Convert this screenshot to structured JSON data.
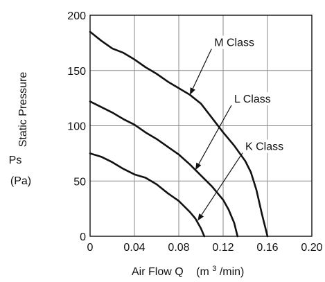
{
  "chart_data": {
    "type": "line",
    "x_ticks": [
      "0",
      "0.04",
      "0.08",
      "0.12",
      "0.16",
      "0.20"
    ],
    "y_ticks": [
      "0",
      "50",
      "100",
      "150",
      "200"
    ],
    "xlim": [
      0,
      0.2
    ],
    "ylim": [
      0,
      200
    ],
    "grid": true,
    "xlabel": "Air Flow Q",
    "xunit_prefix": "(m",
    "xunit_sup": "3",
    "xunit_suffix": "/min)",
    "ylabel": "Static Pressure",
    "ylabel2": "Ps",
    "ylabel3": "(Pa)",
    "series": [
      {
        "name": "M Class",
        "x": [
          0,
          0.01,
          0.02,
          0.03,
          0.04,
          0.05,
          0.06,
          0.07,
          0.08,
          0.09,
          0.1,
          0.11,
          0.12,
          0.13,
          0.14,
          0.145,
          0.15,
          0.155,
          0.16
        ],
        "y": [
          185,
          177,
          170,
          166,
          160,
          153,
          147,
          140,
          134,
          128,
          120,
          107,
          94,
          82,
          68,
          58,
          42,
          20,
          0
        ]
      },
      {
        "name": "L Class",
        "x": [
          0,
          0.01,
          0.02,
          0.03,
          0.04,
          0.05,
          0.06,
          0.07,
          0.08,
          0.09,
          0.1,
          0.11,
          0.12,
          0.125,
          0.13,
          0.133
        ],
        "y": [
          122,
          117,
          112,
          106,
          101,
          94,
          88,
          81,
          74,
          65,
          55,
          45,
          33,
          24,
          12,
          0
        ]
      },
      {
        "name": "K Class",
        "x": [
          0,
          0.01,
          0.02,
          0.03,
          0.04,
          0.05,
          0.06,
          0.07,
          0.08,
          0.09,
          0.095,
          0.1,
          0.103
        ],
        "y": [
          75,
          72,
          67,
          61,
          56,
          53,
          47,
          39,
          32,
          22,
          16,
          7,
          0
        ]
      }
    ],
    "annotations": [
      {
        "text": "M Class",
        "target_x": 0.09,
        "target_y": 128,
        "text_x": 0.112,
        "text_y": 172
      },
      {
        "text": "L Class",
        "target_x": 0.095,
        "target_y": 60,
        "text_x": 0.13,
        "text_y": 121
      },
      {
        "text": "K Class",
        "target_x": 0.097,
        "target_y": 14,
        "text_x": 0.14,
        "text_y": 78
      }
    ]
  }
}
